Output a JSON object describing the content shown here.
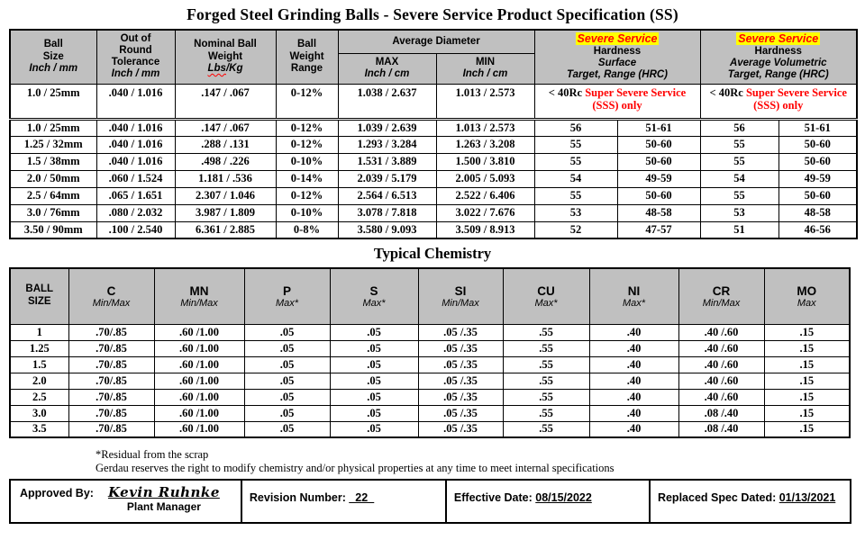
{
  "page": {
    "title": "Forged Steel Grinding Balls - Severe Service Product Specification (SS)"
  },
  "spec": {
    "header": {
      "ball_size_l1": "Ball",
      "ball_size_l2": "Size",
      "ball_size_l3": "Inch / mm",
      "oor_l1": "Out of",
      "oor_l2": "Round",
      "oor_l3": "Tolerance",
      "oor_l4": "Inch / mm",
      "nw_l1": "Nominal Ball",
      "nw_l2": "Weight",
      "nw_l3a": "Lbs",
      "nw_l3b": "/Kg",
      "bwr_l1": "Ball",
      "bwr_l2": "Weight",
      "bwr_l3": "Range",
      "avg_diameter": "Average Diameter",
      "max_l1": "MAX",
      "max_l2": "Inch / cm",
      "min_l1": "MIN",
      "min_l2": "Inch / cm",
      "severe_service": "Severe Service",
      "hardness": "Hardness",
      "surface": "Surface",
      "avg_volumetric": "Average Volumetric",
      "target_range": "Target, Range (HRC)"
    },
    "sss_row": {
      "cells": [
        "1.0 / 25mm",
        ".040 / 1.016",
        ".147 / .067",
        "0-12%",
        "1.038 / 2.637",
        "1.013 / 2.573"
      ],
      "note_prefix": "< 40Rc ",
      "note_text": "Super Severe Service (SSS) only"
    },
    "rows": [
      [
        "1.0 / 25mm",
        ".040 / 1.016",
        ".147 / .067",
        "0-12%",
        "1.039 / 2.639",
        "1.013 / 2.573",
        "56",
        "51-61",
        "56",
        "51-61"
      ],
      [
        "1.25 / 32mm",
        ".040 / 1.016",
        ".288 / .131",
        "0-12%",
        "1.293 / 3.284",
        "1.263 / 3.208",
        "55",
        "50-60",
        "55",
        "50-60"
      ],
      [
        "1.5 / 38mm",
        ".040 / 1.016",
        ".498 / .226",
        "0-10%",
        "1.531 / 3.889",
        "1.500 / 3.810",
        "55",
        "50-60",
        "55",
        "50-60"
      ],
      [
        "2.0 / 50mm",
        ".060 / 1.524",
        "1.181 / .536",
        "0-14%",
        "2.039 / 5.179",
        "2.005 / 5.093",
        "54",
        "49-59",
        "54",
        "49-59"
      ],
      [
        "2.5 / 64mm",
        ".065 / 1.651",
        "2.307 / 1.046",
        "0-12%",
        "2.564 / 6.513",
        "2.522 / 6.406",
        "55",
        "50-60",
        "55",
        "50-60"
      ],
      [
        "3.0 / 76mm",
        ".080 / 2.032",
        "3.987 / 1.809",
        "0-10%",
        "3.078 / 7.818",
        "3.022 / 7.676",
        "53",
        "48-58",
        "53",
        "48-58"
      ],
      [
        "3.50 / 90mm",
        ".100 / 2.540",
        "6.361 / 2.885",
        "0-8%",
        "3.580 / 9.093",
        "3.509 / 8.913",
        "52",
        "47-57",
        "51",
        "46-56"
      ]
    ]
  },
  "chemistry": {
    "title": "Typical Chemistry",
    "ball_size_l1": "BALL",
    "ball_size_l2": "SIZE",
    "columns": [
      {
        "symbol": "C",
        "sub": "Min/Max"
      },
      {
        "symbol": "MN",
        "sub": "Min/Max"
      },
      {
        "symbol": "P",
        "sub": "Max*"
      },
      {
        "symbol": "S",
        "sub": "Max*"
      },
      {
        "symbol": "SI",
        "sub": "Min/Max"
      },
      {
        "symbol": "CU",
        "sub": "Max*"
      },
      {
        "symbol": "NI",
        "sub": "Max*"
      },
      {
        "symbol": "CR",
        "sub": "Min/Max"
      },
      {
        "symbol": "MO",
        "sub": "Max"
      }
    ],
    "rows": [
      [
        "1",
        ".70/.85",
        ".60 /1.00",
        ".05",
        ".05",
        ".05 /.35",
        ".55",
        ".40",
        ".40 /.60",
        ".15"
      ],
      [
        "1.25",
        ".70/.85",
        ".60 /1.00",
        ".05",
        ".05",
        ".05 /.35",
        ".55",
        ".40",
        ".40 /.60",
        ".15"
      ],
      [
        "1.5",
        ".70/.85",
        ".60 /1.00",
        ".05",
        ".05",
        ".05 /.35",
        ".55",
        ".40",
        ".40 /.60",
        ".15"
      ],
      [
        "2.0",
        ".70/.85",
        ".60 /1.00",
        ".05",
        ".05",
        ".05 /.35",
        ".55",
        ".40",
        ".40 /.60",
        ".15"
      ],
      [
        "2.5",
        ".70/.85",
        ".60 /1.00",
        ".05",
        ".05",
        ".05 /.35",
        ".55",
        ".40",
        ".40 /.60",
        ".15"
      ],
      [
        "3.0",
        ".70/.85",
        ".60 /1.00",
        ".05",
        ".05",
        ".05 /.35",
        ".55",
        ".40",
        ".08 /.40",
        ".15"
      ],
      [
        "3.5",
        ".70/.85",
        ".60 /1.00",
        ".05",
        ".05",
        ".05 /.35",
        ".55",
        ".40",
        ".08 /.40",
        ".15"
      ]
    ]
  },
  "notes": {
    "residual": "*Residual from the scrap",
    "disclaimer": "Gerdau reserves the right to modify chemistry and/or physical properties at any time to meet internal specifications"
  },
  "approval": {
    "approved_by_label": "Approved By:",
    "signature": "Kevin Ruhnke",
    "signer_title": "Plant Manager",
    "revision_label": "Revision Number:",
    "revision_value": "_22_",
    "effective_label": "Effective Date:",
    "effective_value": "08/15/2022",
    "replaced_label": "Replaced Spec Dated:",
    "replaced_value": "01/13/2021"
  },
  "colors": {
    "header_bg": "#c0c0c0",
    "highlight_yellow": "#ffff00",
    "alert_red": "#ff0000"
  }
}
